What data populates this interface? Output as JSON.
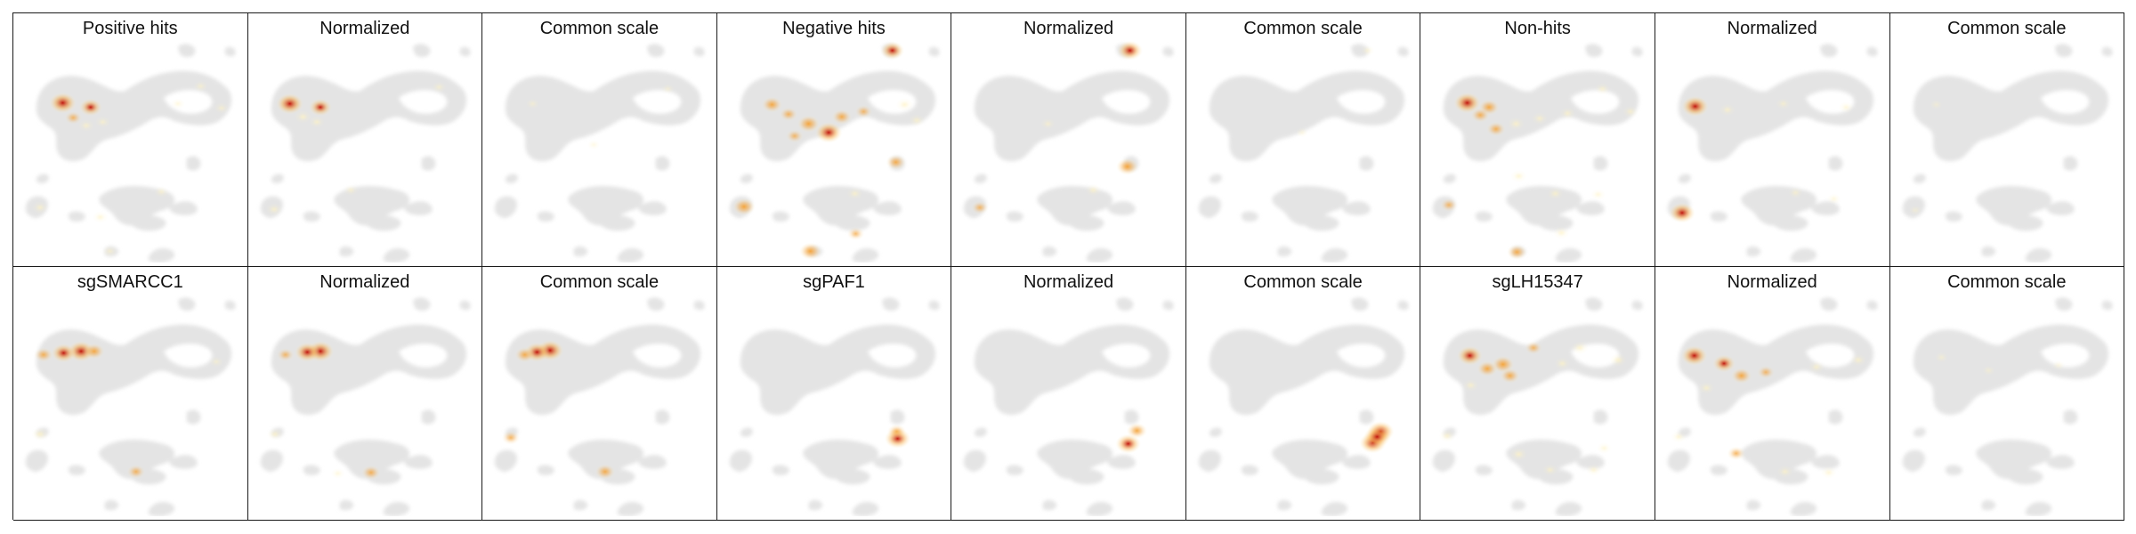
{
  "figure": {
    "rows": [
      {
        "panels": [
          {
            "title": "Positive hits",
            "hotspots": [
              {
                "x": 54,
                "y": 102,
                "i": 1.0
              },
              {
                "x": 86,
                "y": 107,
                "i": 0.75
              },
              {
                "x": 66,
                "y": 119,
                "i": 0.4
              },
              {
                "x": 81,
                "y": 128,
                "i": 0.3
              },
              {
                "x": 100,
                "y": 124,
                "i": 0.25
              },
              {
                "x": 212,
                "y": 83,
                "i": 0.2
              },
              {
                "x": 236,
                "y": 108,
                "i": 0.2
              },
              {
                "x": 186,
                "y": 103,
                "i": 0.15
              },
              {
                "x": 28,
                "y": 222,
                "i": 0.3
              },
              {
                "x": 97,
                "y": 233,
                "i": 0.25
              },
              {
                "x": 167,
                "y": 204,
                "i": 0.2
              },
              {
                "x": 108,
                "y": 272,
                "i": 0.2
              }
            ]
          },
          {
            "title": "Normalized",
            "hotspots": [
              {
                "x": 45,
                "y": 103,
                "i": 1.0
              },
              {
                "x": 80,
                "y": 107,
                "i": 0.75
              },
              {
                "x": 60,
                "y": 118,
                "i": 0.35
              },
              {
                "x": 76,
                "y": 124,
                "i": 0.3
              },
              {
                "x": 216,
                "y": 84,
                "i": 0.2
              },
              {
                "x": 27,
                "y": 224,
                "i": 0.3
              },
              {
                "x": 115,
                "y": 202,
                "i": 0.2
              }
            ]
          },
          {
            "title": "Common scale",
            "hotspots": [
              {
                "x": 55,
                "y": 103,
                "i": 0.12
              },
              {
                "x": 210,
                "y": 86,
                "i": 0.08
              },
              {
                "x": 125,
                "y": 150,
                "i": 0.06
              }
            ]
          },
          {
            "title": "Negative hits",
            "hotspots": [
              {
                "x": 198,
                "y": 42,
                "i": 0.8
              },
              {
                "x": 60,
                "y": 104,
                "i": 0.6
              },
              {
                "x": 102,
                "y": 126,
                "i": 0.7
              },
              {
                "x": 125,
                "y": 136,
                "i": 1.0
              },
              {
                "x": 140,
                "y": 118,
                "i": 0.55
              },
              {
                "x": 79,
                "y": 115,
                "i": 0.45
              },
              {
                "x": 165,
                "y": 112,
                "i": 0.4
              },
              {
                "x": 212,
                "y": 104,
                "i": 0.35
              },
              {
                "x": 226,
                "y": 122,
                "i": 0.3
              },
              {
                "x": 86,
                "y": 140,
                "i": 0.4
              },
              {
                "x": 28,
                "y": 221,
                "i": 0.7
              },
              {
                "x": 202,
                "y": 170,
                "i": 0.55
              },
              {
                "x": 155,
                "y": 206,
                "i": 0.3
              },
              {
                "x": 156,
                "y": 252,
                "i": 0.4
              },
              {
                "x": 104,
                "y": 272,
                "i": 0.7
              }
            ]
          },
          {
            "title": "Normalized",
            "hotspots": [
              {
                "x": 202,
                "y": 42,
                "i": 0.9
              },
              {
                "x": 199,
                "y": 175,
                "i": 0.7
              },
              {
                "x": 30,
                "y": 222,
                "i": 0.4
              },
              {
                "x": 160,
                "y": 202,
                "i": 0.3
              },
              {
                "x": 108,
                "y": 126,
                "i": 0.2
              }
            ]
          },
          {
            "title": "Common scale",
            "hotspots": [
              {
                "x": 205,
                "y": 42,
                "i": 0.15
              },
              {
                "x": 130,
                "y": 136,
                "i": 0.05
              }
            ]
          },
          {
            "title": "Non-hits",
            "hotspots": [
              {
                "x": 51,
                "y": 102,
                "i": 1.0
              },
              {
                "x": 76,
                "y": 107,
                "i": 0.6
              },
              {
                "x": 84,
                "y": 132,
                "i": 0.5
              },
              {
                "x": 66,
                "y": 116,
                "i": 0.5
              },
              {
                "x": 107,
                "y": 126,
                "i": 0.35
              },
              {
                "x": 134,
                "y": 120,
                "i": 0.3
              },
              {
                "x": 166,
                "y": 114,
                "i": 0.3
              },
              {
                "x": 206,
                "y": 86,
                "i": 0.25
              },
              {
                "x": 238,
                "y": 112,
                "i": 0.25
              },
              {
                "x": 30,
                "y": 219,
                "i": 0.4
              },
              {
                "x": 108,
                "y": 273,
                "i": 0.55
              },
              {
                "x": 159,
                "y": 251,
                "i": 0.3
              },
              {
                "x": 152,
                "y": 206,
                "i": 0.3
              },
              {
                "x": 201,
                "y": 207,
                "i": 0.2
              },
              {
                "x": 110,
                "y": 186,
                "i": 0.3
              }
            ]
          },
          {
            "title": "Normalized",
            "hotspots": [
              {
                "x": 43,
                "y": 106,
                "i": 1.0
              },
              {
                "x": 28,
                "y": 228,
                "i": 0.95
              },
              {
                "x": 80,
                "y": 110,
                "i": 0.3
              },
              {
                "x": 144,
                "y": 103,
                "i": 0.2
              },
              {
                "x": 216,
                "y": 107,
                "i": 0.2
              },
              {
                "x": 158,
                "y": 205,
                "i": 0.2
              },
              {
                "x": 202,
                "y": 212,
                "i": 0.15
              }
            ]
          },
          {
            "title": "Common scale",
            "hotspots": [
              {
                "x": 50,
                "y": 104,
                "i": 0.05
              },
              {
                "x": 26,
                "y": 225,
                "i": 0.05
              }
            ]
          }
        ]
      },
      {
        "panels": [
          {
            "title": "sgSMARCC1",
            "hotspots": [
              {
                "x": 75,
                "y": 96,
                "i": 1.0
              },
              {
                "x": 55,
                "y": 98,
                "i": 0.85
              },
              {
                "x": 90,
                "y": 96,
                "i": 0.6
              },
              {
                "x": 32,
                "y": 100,
                "i": 0.5
              },
              {
                "x": 28,
                "y": 191,
                "i": 0.35
              },
              {
                "x": 138,
                "y": 234,
                "i": 0.45
              },
              {
                "x": 230,
                "y": 108,
                "i": 0.15
              }
            ]
          },
          {
            "title": "Normalized",
            "hotspots": [
              {
                "x": 80,
                "y": 96,
                "i": 1.0
              },
              {
                "x": 65,
                "y": 97,
                "i": 0.9
              },
              {
                "x": 40,
                "y": 100,
                "i": 0.4
              },
              {
                "x": 28,
                "y": 191,
                "i": 0.3
              },
              {
                "x": 138,
                "y": 235,
                "i": 0.5
              },
              {
                "x": 100,
                "y": 236,
                "i": 0.15
              }
            ]
          },
          {
            "title": "Common scale",
            "hotspots": [
              {
                "x": 75,
                "y": 95,
                "i": 1.0
              },
              {
                "x": 60,
                "y": 97,
                "i": 0.9
              },
              {
                "x": 46,
                "y": 100,
                "i": 0.55
              },
              {
                "x": 30,
                "y": 195,
                "i": 0.45
              },
              {
                "x": 138,
                "y": 234,
                "i": 0.55
              }
            ]
          },
          {
            "title": "sgPAF1",
            "hotspots": [
              {
                "x": 204,
                "y": 196,
                "i": 0.95
              },
              {
                "x": 203,
                "y": 188,
                "i": 0.5
              }
            ]
          },
          {
            "title": "Normalized",
            "hotspots": [
              {
                "x": 210,
                "y": 187,
                "i": 0.6
              },
              {
                "x": 200,
                "y": 202,
                "i": 0.9
              }
            ]
          },
          {
            "title": "Common scale",
            "hotspots": [
              {
                "x": 220,
                "y": 188,
                "i": 1.0
              },
              {
                "x": 211,
                "y": 201,
                "i": 1.0
              },
              {
                "x": 216,
                "y": 194,
                "i": 1.0
              }
            ]
          },
          {
            "title": "sgLH15347",
            "hotspots": [
              {
                "x": 54,
                "y": 101,
                "i": 0.9
              },
              {
                "x": 92,
                "y": 111,
                "i": 0.7
              },
              {
                "x": 74,
                "y": 116,
                "i": 0.6
              },
              {
                "x": 100,
                "y": 124,
                "i": 0.55
              },
              {
                "x": 127,
                "y": 92,
                "i": 0.4
              },
              {
                "x": 180,
                "y": 92,
                "i": 0.35
              },
              {
                "x": 224,
                "y": 106,
                "i": 0.35
              },
              {
                "x": 160,
                "y": 110,
                "i": 0.3
              },
              {
                "x": 55,
                "y": 135,
                "i": 0.3
              },
              {
                "x": 28,
                "y": 193,
                "i": 0.3
              },
              {
                "x": 110,
                "y": 214,
                "i": 0.35
              },
              {
                "x": 146,
                "y": 232,
                "i": 0.25
              },
              {
                "x": 196,
                "y": 232,
                "i": 0.25
              },
              {
                "x": 208,
                "y": 207,
                "i": 0.2
              }
            ]
          },
          {
            "title": "Normalized",
            "hotspots": [
              {
                "x": 42,
                "y": 101,
                "i": 0.95
              },
              {
                "x": 76,
                "y": 110,
                "i": 0.75
              },
              {
                "x": 96,
                "y": 124,
                "i": 0.6
              },
              {
                "x": 124,
                "y": 120,
                "i": 0.4
              },
              {
                "x": 182,
                "y": 114,
                "i": 0.3
              },
              {
                "x": 230,
                "y": 106,
                "i": 0.3
              },
              {
                "x": 56,
                "y": 138,
                "i": 0.3
              },
              {
                "x": 24,
                "y": 194,
                "i": 0.25
              },
              {
                "x": 90,
                "y": 213,
                "i": 0.45
              },
              {
                "x": 146,
                "y": 234,
                "i": 0.3
              },
              {
                "x": 196,
                "y": 235,
                "i": 0.25
              }
            ]
          },
          {
            "title": "Common scale",
            "hotspots": [
              {
                "x": 56,
                "y": 103,
                "i": 0.12
              },
              {
                "x": 110,
                "y": 118,
                "i": 0.08
              },
              {
                "x": 190,
                "y": 112,
                "i": 0.06
              }
            ]
          }
        ]
      }
    ]
  },
  "colors": {
    "background": "#ffffff",
    "cell_cloud": "#e4e4e4",
    "border": "#1a1a1a",
    "heat_low": "#fff3c4",
    "heat_mid": "#f4a640",
    "heat_high": "#c0150f"
  }
}
